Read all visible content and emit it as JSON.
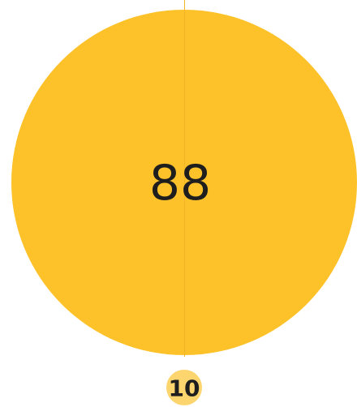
{
  "main": {
    "label": "88"
  },
  "secondary": {
    "label": "10"
  }
}
